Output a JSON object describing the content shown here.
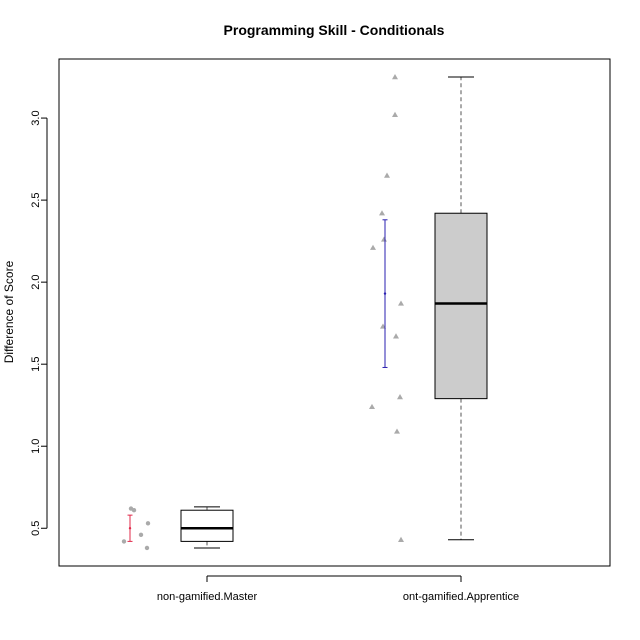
{
  "chart_data": {
    "type": "boxplot",
    "title": "Programming Skill - Conditionals",
    "xlabel": "",
    "ylabel": "Difference of Score",
    "ylim": [
      0.27,
      3.36
    ],
    "y_ticks": [
      0.5,
      1.0,
      1.5,
      2.0,
      2.5,
      3.0
    ],
    "y_tick_labels": [
      "0.5",
      "1.0",
      "1.5",
      "2.0",
      "2.5",
      "3.0"
    ],
    "grid": false,
    "categories": [
      "non-gamified.Master",
      "ont-gamified.Apprentice"
    ],
    "boxes": [
      {
        "name": "non-gamified.Master",
        "whisker_low": 0.38,
        "q1": 0.42,
        "median": 0.5,
        "q3": 0.61,
        "whisker_high": 0.63,
        "fill": "#ffffff",
        "points": [
          0.42,
          0.62,
          0.61,
          0.53,
          0.46,
          0.38
        ],
        "point_color": "#aaaaaa",
        "point_shape": "circle",
        "error_bar": {
          "mean": 0.5,
          "low": 0.42,
          "high": 0.58,
          "color": "#e0294a"
        }
      },
      {
        "name": "ont-gamified.Apprentice",
        "whisker_low": 0.43,
        "q1": 1.29,
        "median": 1.87,
        "q3": 2.42,
        "whisker_high": 3.25,
        "fill": "#cccccc",
        "points": [
          1.24,
          2.21,
          2.42,
          1.73,
          2.26,
          2.65,
          1.09,
          3.25,
          3.02,
          1.67,
          1.87,
          1.3,
          0.43
        ],
        "point_color": "#aaaaaa",
        "point_shape": "triangle",
        "error_bar": {
          "mean": 1.93,
          "low": 1.48,
          "high": 2.38,
          "color": "#2a1fb0"
        }
      }
    ]
  }
}
